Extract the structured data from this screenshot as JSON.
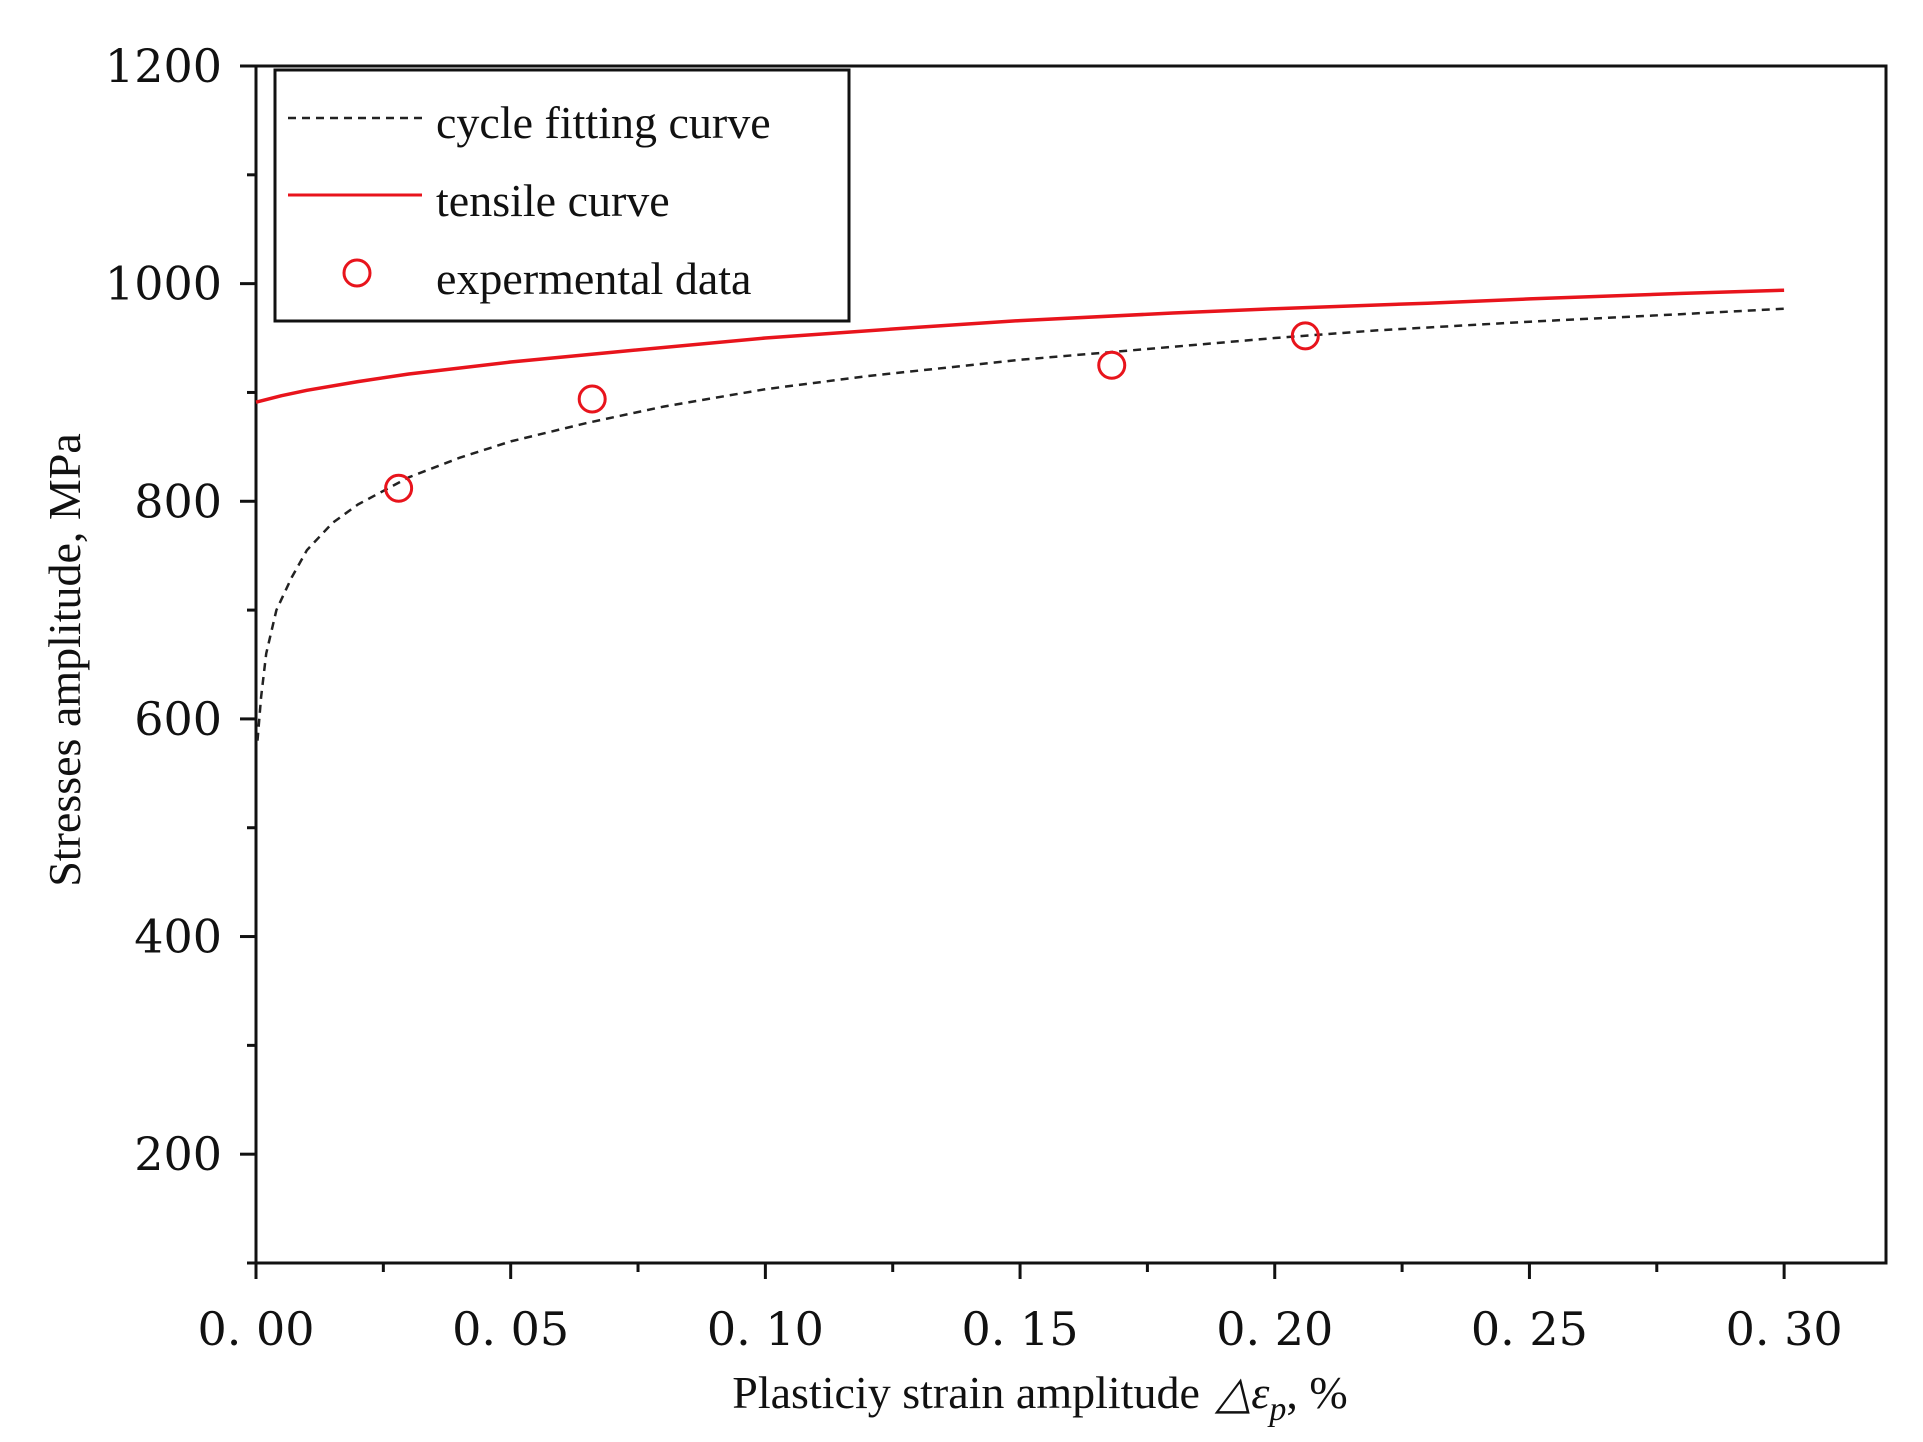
{
  "chart_data": {
    "type": "line",
    "title": "",
    "xlabel": "Plasticiy strain amplitude",
    "xlabel_symbol": "△ε",
    "xlabel_subscript": "p",
    "xlabel_unit": ", %",
    "ylabel": "Stresses amplitude, MPa",
    "xlim": [
      0,
      0.32
    ],
    "ylim": [
      100,
      1200
    ],
    "x_ticks": [
      0.0,
      0.05,
      0.1,
      0.15,
      0.2,
      0.25,
      0.3
    ],
    "x_tick_labels": [
      "0. 00",
      "0. 05",
      "0. 10",
      "0. 15",
      "0. 20",
      "0. 25",
      "0. 30"
    ],
    "y_ticks": [
      200,
      400,
      600,
      800,
      1000,
      1200
    ],
    "y_tick_labels": [
      "200",
      "400",
      "600",
      "800",
      "1000",
      "1200"
    ],
    "grid": false,
    "legend_position": "top-left",
    "series": [
      {
        "name": "cycle fitting curve",
        "style": "dashed",
        "color": "#222222",
        "x": [
          0.0003,
          0.001,
          0.002,
          0.004,
          0.007,
          0.01,
          0.015,
          0.02,
          0.03,
          0.04,
          0.05,
          0.065,
          0.08,
          0.1,
          0.12,
          0.15,
          0.18,
          0.2,
          0.22,
          0.25,
          0.28,
          0.3
        ],
        "y": [
          580,
          620,
          660,
          700,
          730,
          755,
          780,
          797,
          822,
          840,
          855,
          872,
          887,
          903,
          915,
          930,
          942,
          950,
          957,
          965,
          972,
          977
        ]
      },
      {
        "name": "tensile curve",
        "style": "solid",
        "color": "#e8141c",
        "x": [
          0.0,
          0.005,
          0.01,
          0.02,
          0.03,
          0.05,
          0.07,
          0.1,
          0.13,
          0.15,
          0.18,
          0.2,
          0.23,
          0.25,
          0.28,
          0.3
        ],
        "y": [
          891,
          897,
          902,
          910,
          917,
          928,
          937,
          950,
          960,
          966,
          973,
          977,
          982,
          986,
          991,
          994
        ]
      },
      {
        "name": "expermental data",
        "style": "markers",
        "color": "#e8141c",
        "x": [
          0.028,
          0.066,
          0.168,
          0.206
        ],
        "y": [
          812,
          894,
          925,
          952
        ]
      }
    ]
  }
}
